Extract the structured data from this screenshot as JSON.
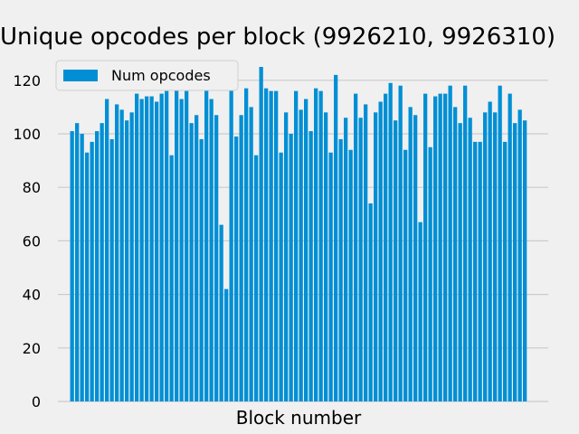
{
  "chart_data": {
    "type": "bar",
    "title": "Unique opcodes per block (9926210, 9926310)",
    "xlabel": "Block number",
    "ylabel": "",
    "ylim": [
      0,
      130
    ],
    "yticks": [
      0,
      20,
      40,
      60,
      80,
      100,
      120
    ],
    "grid": true,
    "legend_position": "top-left",
    "bar_color": "#008fd5",
    "background": "#f0f0f0",
    "series": [
      {
        "name": "Num opcodes",
        "values": [
          101,
          104,
          100,
          93,
          97,
          101,
          104,
          113,
          98,
          111,
          109,
          105,
          108,
          115,
          113,
          114,
          114,
          112,
          115,
          116,
          92,
          117,
          113,
          116,
          104,
          107,
          98,
          119,
          113,
          107,
          66,
          42,
          121,
          99,
          107,
          117,
          110,
          92,
          125,
          117,
          116,
          116,
          93,
          108,
          100,
          116,
          109,
          113,
          101,
          117,
          116,
          108,
          93,
          122,
          98,
          106,
          94,
          115,
          106,
          111,
          74,
          108,
          112,
          115,
          119,
          105,
          118,
          94,
          110,
          107,
          67,
          115,
          95,
          114,
          115,
          115,
          118,
          110,
          104,
          118,
          106,
          97,
          97,
          108,
          112,
          108,
          118,
          97,
          115,
          104,
          109,
          105
        ]
      }
    ]
  }
}
